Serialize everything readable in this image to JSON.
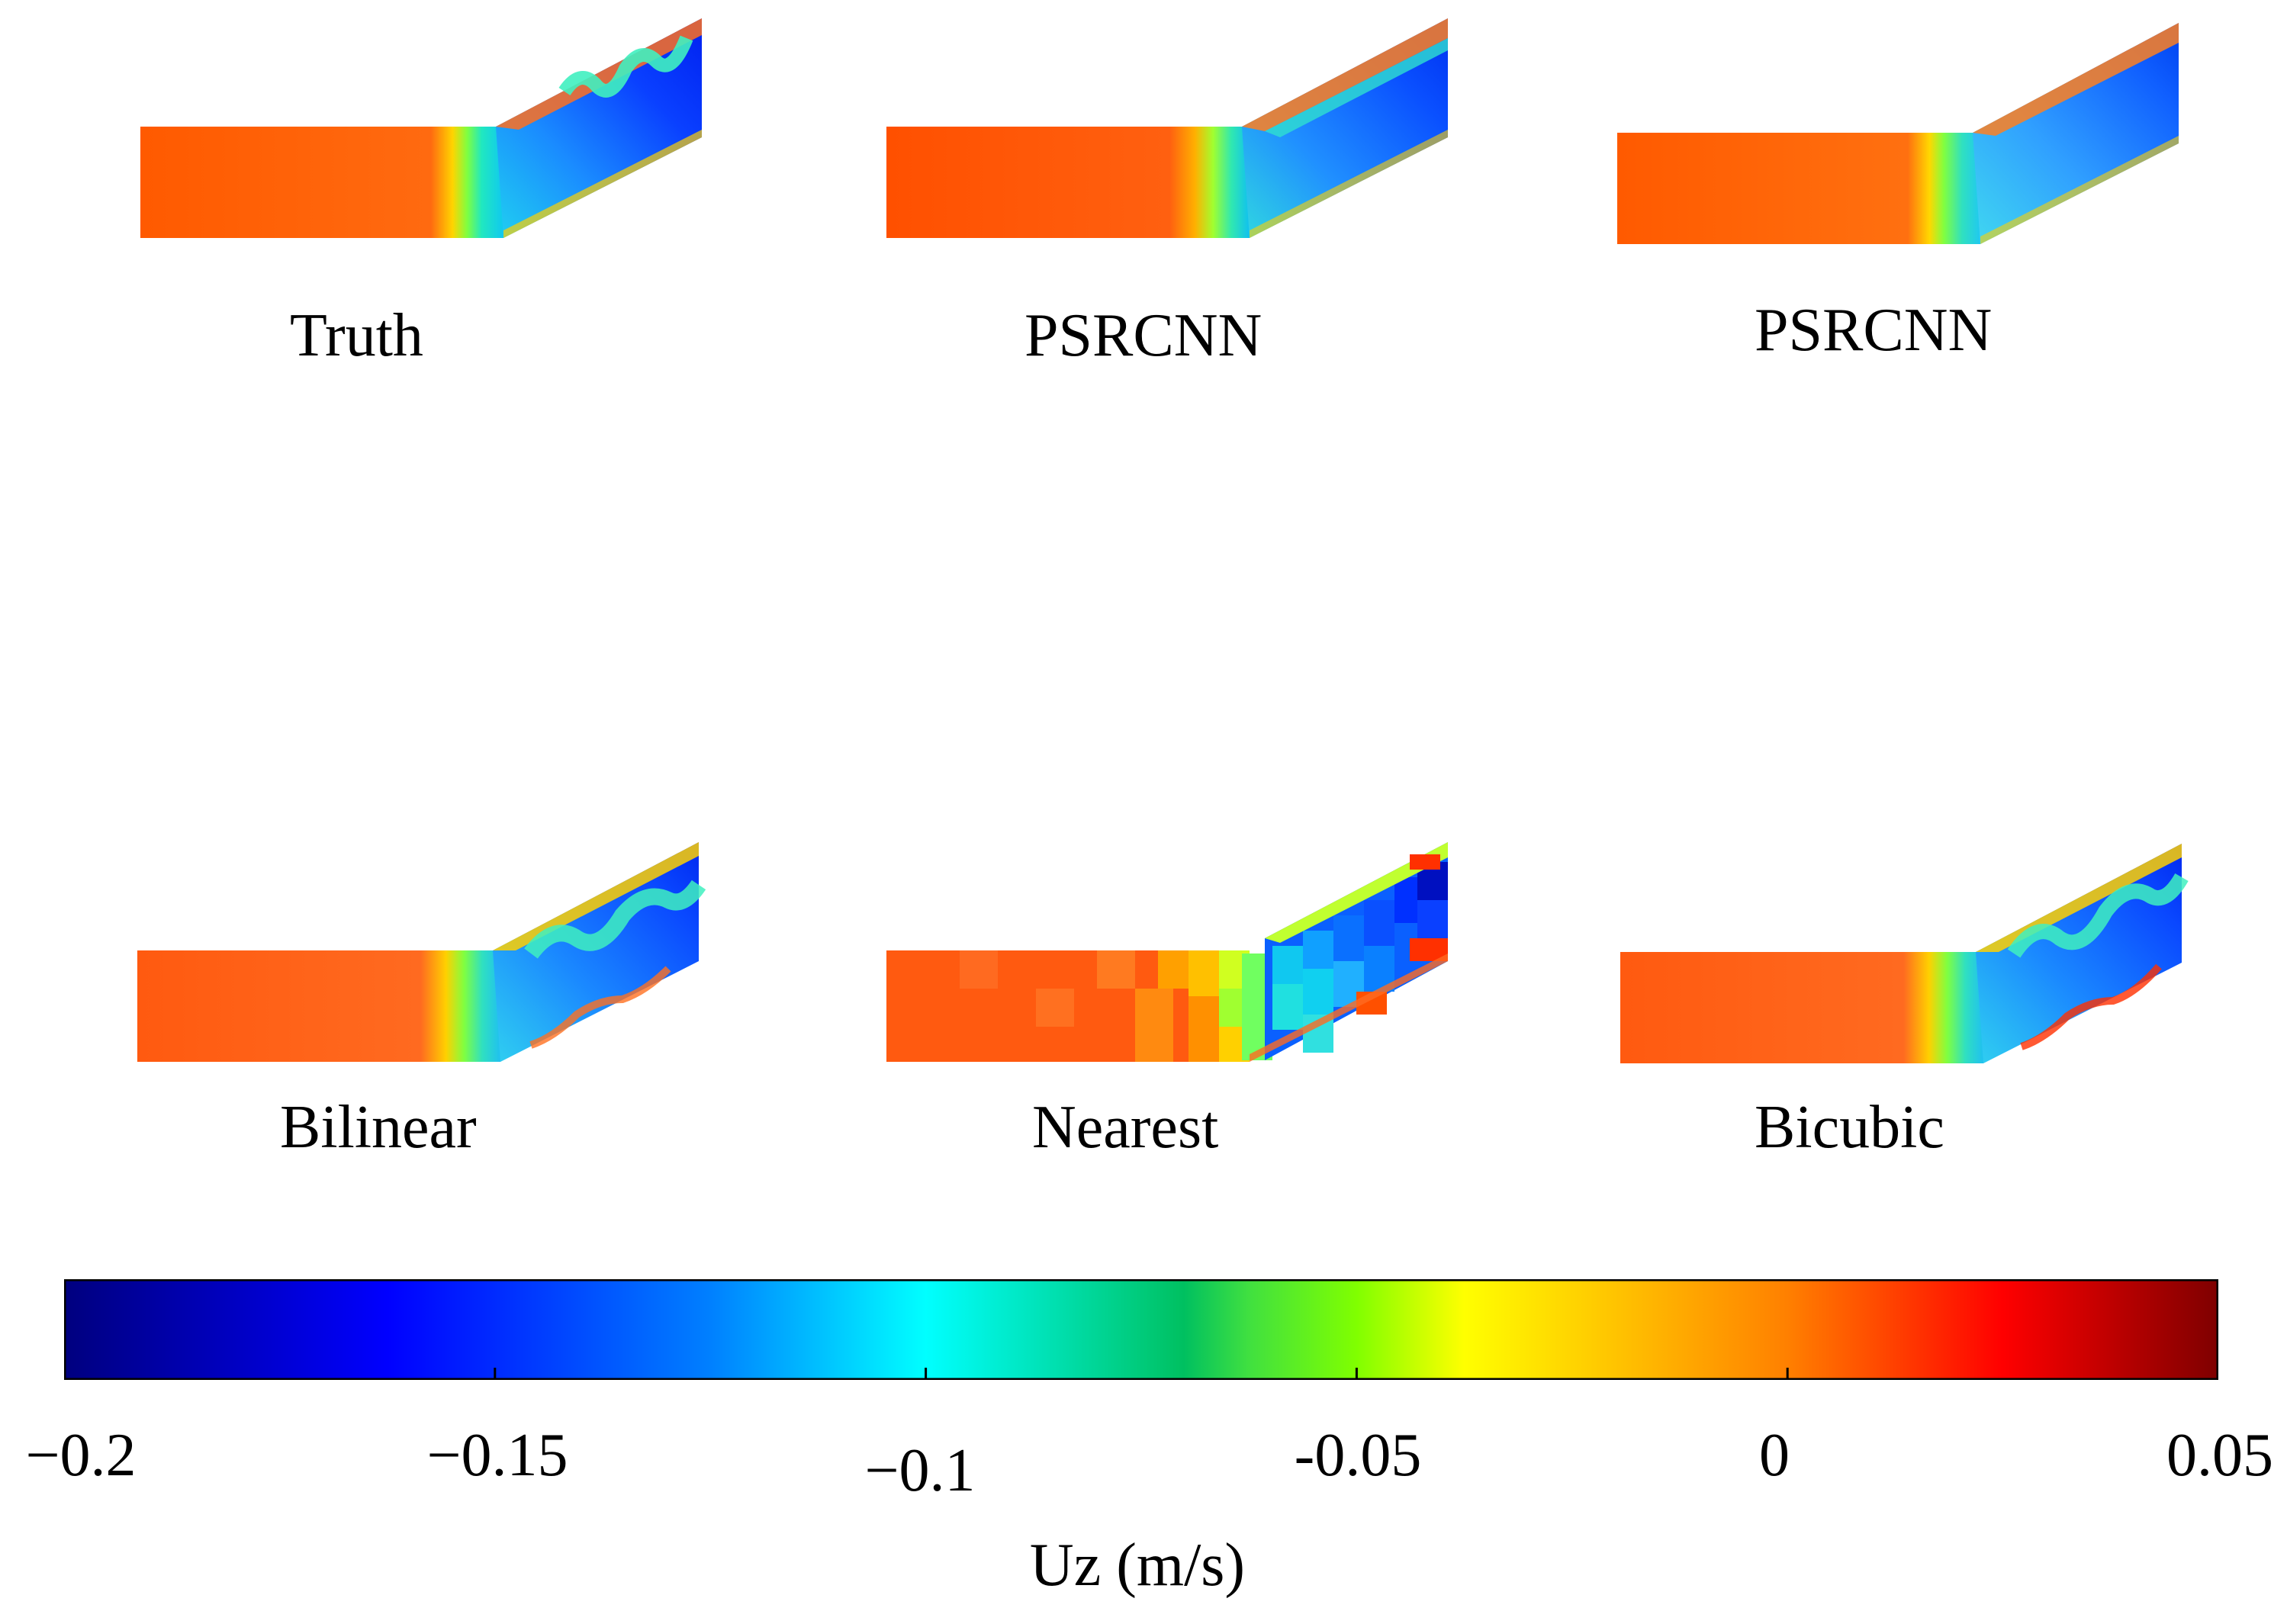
{
  "panels": [
    {
      "id": "truth",
      "label": "Truth"
    },
    {
      "id": "psrcnn-1",
      "label": "PSRCNN"
    },
    {
      "id": "psrcnn-2",
      "label": "PSRCNN"
    },
    {
      "id": "bilinear",
      "label": "Bilinear"
    },
    {
      "id": "nearest",
      "label": "Nearest"
    },
    {
      "id": "bicubic",
      "label": "Bicubic"
    }
  ],
  "colorbar": {
    "title": "Uz (m/s)",
    "range": [
      -0.2,
      0.05
    ],
    "ticks": [
      "−0.2",
      "−0.15",
      "−0.1",
      "-0.05",
      "0",
      "0.05"
    ],
    "tick_values": [
      -0.2,
      -0.15,
      -0.1,
      -0.05,
      0,
      0.05
    ],
    "colormap": [
      "#00007f",
      "#0000ff",
      "#007fff",
      "#00ffff",
      "#00c060",
      "#7fff00",
      "#ffff00",
      "#ff7f00",
      "#ff0000",
      "#7f0000"
    ]
  }
}
